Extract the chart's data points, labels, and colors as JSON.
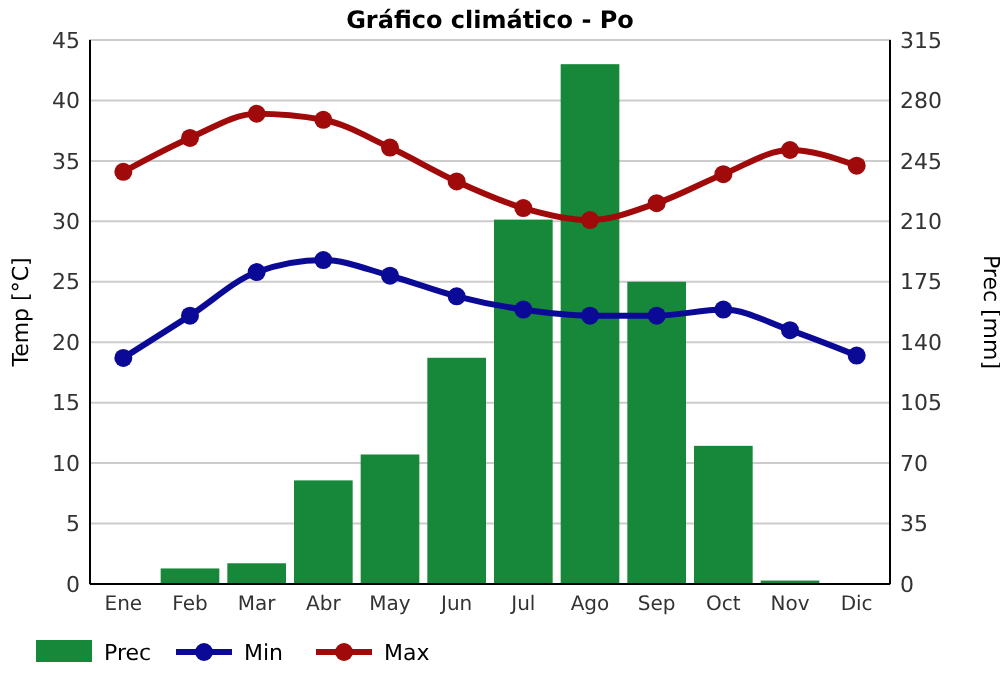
{
  "chart_data": {
    "type": "bar",
    "title": "Gráfico climático - Po",
    "ylabel": "Temp [°C]",
    "y2label": "Prec [mm]",
    "categories": [
      "Ene",
      "Feb",
      "Mar",
      "Abr",
      "May",
      "Jun",
      "Jul",
      "Ago",
      "Sep",
      "Oct",
      "Nov",
      "Dic"
    ],
    "series": [
      {
        "name": "Prec",
        "axis": "y2",
        "color": "#17873a",
        "values": [
          0,
          9,
          12,
          60,
          75,
          131,
          211,
          301,
          175,
          80,
          2,
          0
        ]
      },
      {
        "name": "Min",
        "type": "line",
        "color": "#0a0a96",
        "values": [
          18.7,
          22.2,
          25.8,
          26.8,
          25.5,
          23.8,
          22.7,
          22.2,
          22.2,
          22.7,
          21.0,
          18.9
        ]
      },
      {
        "name": "Max",
        "type": "line",
        "color": "#a00a0a",
        "values": [
          34.1,
          36.9,
          38.9,
          38.4,
          36.1,
          33.3,
          31.1,
          30.1,
          31.5,
          33.9,
          35.9,
          34.6
        ]
      }
    ],
    "ylim": [
      0,
      45
    ],
    "yticks": [
      0,
      5,
      10,
      15,
      20,
      25,
      30,
      35,
      40,
      45
    ],
    "y2lim": [
      0,
      315
    ],
    "y2ticks": [
      0,
      35,
      70,
      105,
      140,
      175,
      210,
      245,
      280,
      315
    ],
    "grid": "y",
    "legend": "bottom",
    "marker": "circle",
    "line_style": "solid"
  }
}
